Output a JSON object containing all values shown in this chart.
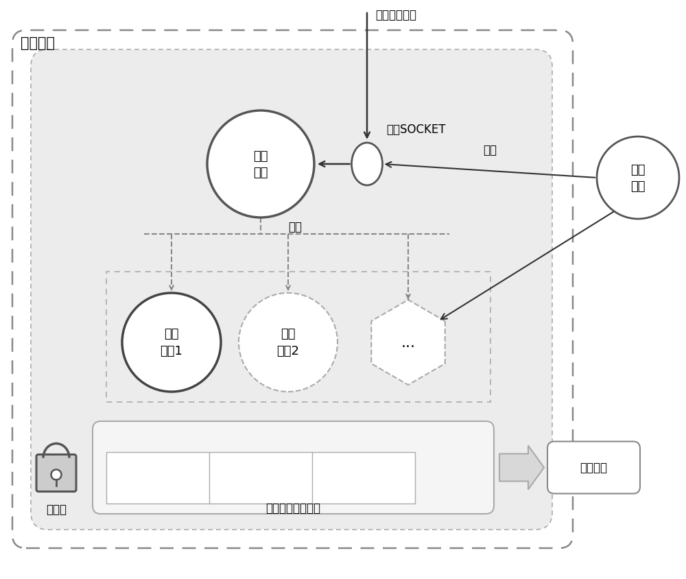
{
  "bg_color": "#ffffff",
  "text_color": "#000000",
  "dark_gray": "#333333",
  "mid_gray": "#666666",
  "light_gray": "#999999",
  "inner_fill": "#e8e8e8",
  "label_jichu": "基础框架",
  "label_user_cmd": "用户操作指令",
  "label_manage_socket": "管理SOCKET",
  "label_platform": "平台\n进程",
  "label_plugin1": "插件\n进程1",
  "label_plugin2": "插件\n进程2",
  "label_dots": "...",
  "label_clone": "克隆",
  "label_report": "汇报",
  "label_self_diag": "自我\n诊断",
  "label_shared_mem": "进程管理共享内存",
  "label_signal": "信号灯",
  "label_monitor": "运行监视",
  "font_size_title": 15,
  "font_size_main": 13,
  "font_size_label": 12
}
